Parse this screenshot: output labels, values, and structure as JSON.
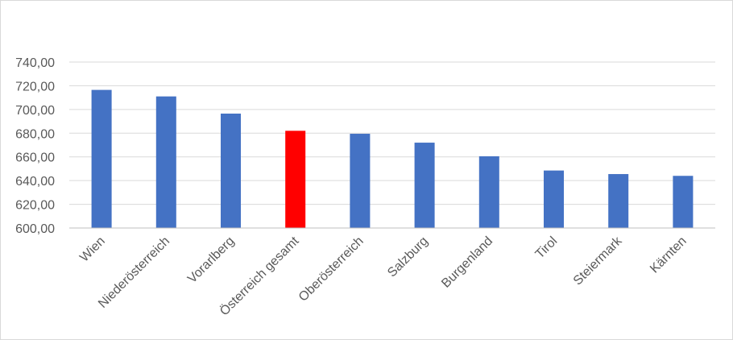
{
  "chart_data": {
    "type": "bar",
    "title": "",
    "xlabel": "",
    "ylabel": "",
    "categories": [
      "Wien",
      "Niederösterreich",
      "Vorarlberg",
      "Österreich gesamt",
      "Oberösterreich",
      "Salzburg",
      "Burgenland",
      "Tirol",
      "Steiermark",
      "Kärnten"
    ],
    "values": [
      716.5,
      711,
      696.5,
      682,
      679.5,
      672,
      660.5,
      648.5,
      645.5,
      644
    ],
    "ylim": [
      600,
      740
    ],
    "yticks": [
      "600,00",
      "620,00",
      "640,00",
      "660,00",
      "680,00",
      "700,00",
      "720,00",
      "740,00"
    ],
    "grid": true,
    "legend": "none",
    "bar_color": "#4472c4",
    "highlight_color": "#ff0000",
    "highlight_category": "Österreich gesamt",
    "gridline_color": "#d9d9d9",
    "axis_line_color": "#bfbfbf",
    "label_color": "#595959"
  }
}
